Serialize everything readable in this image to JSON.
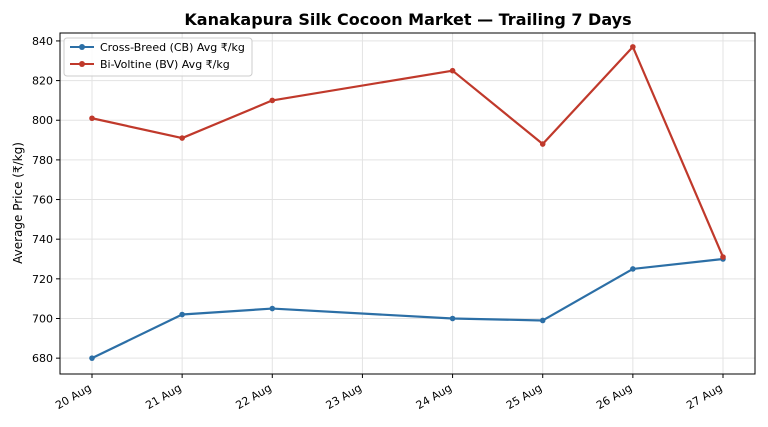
{
  "chart_data": {
    "type": "line",
    "title": "Kanakapura Silk Cocoon Market — Trailing 7 Days",
    "xlabel": "",
    "ylabel": "Average Price (₹/kg)",
    "categories": [
      "20 Aug",
      "21 Aug",
      "22 Aug",
      "23 Aug",
      "24 Aug",
      "25 Aug",
      "26 Aug",
      "27 Aug"
    ],
    "ylim": [
      672,
      844
    ],
    "yticks": [
      680,
      700,
      720,
      740,
      760,
      780,
      800,
      820,
      840
    ],
    "grid": true,
    "legend_position": "top-left",
    "series": [
      {
        "name": "Cross-Breed (CB) Avg ₹/kg",
        "color": "#2c6fa6",
        "values": [
          680,
          702,
          705,
          null,
          700,
          699,
          725,
          730
        ]
      },
      {
        "name": "Bi-Voltine (BV) Avg ₹/kg",
        "color": "#c0392b",
        "values": [
          801,
          791,
          810,
          null,
          825,
          788,
          837,
          731
        ]
      }
    ]
  }
}
